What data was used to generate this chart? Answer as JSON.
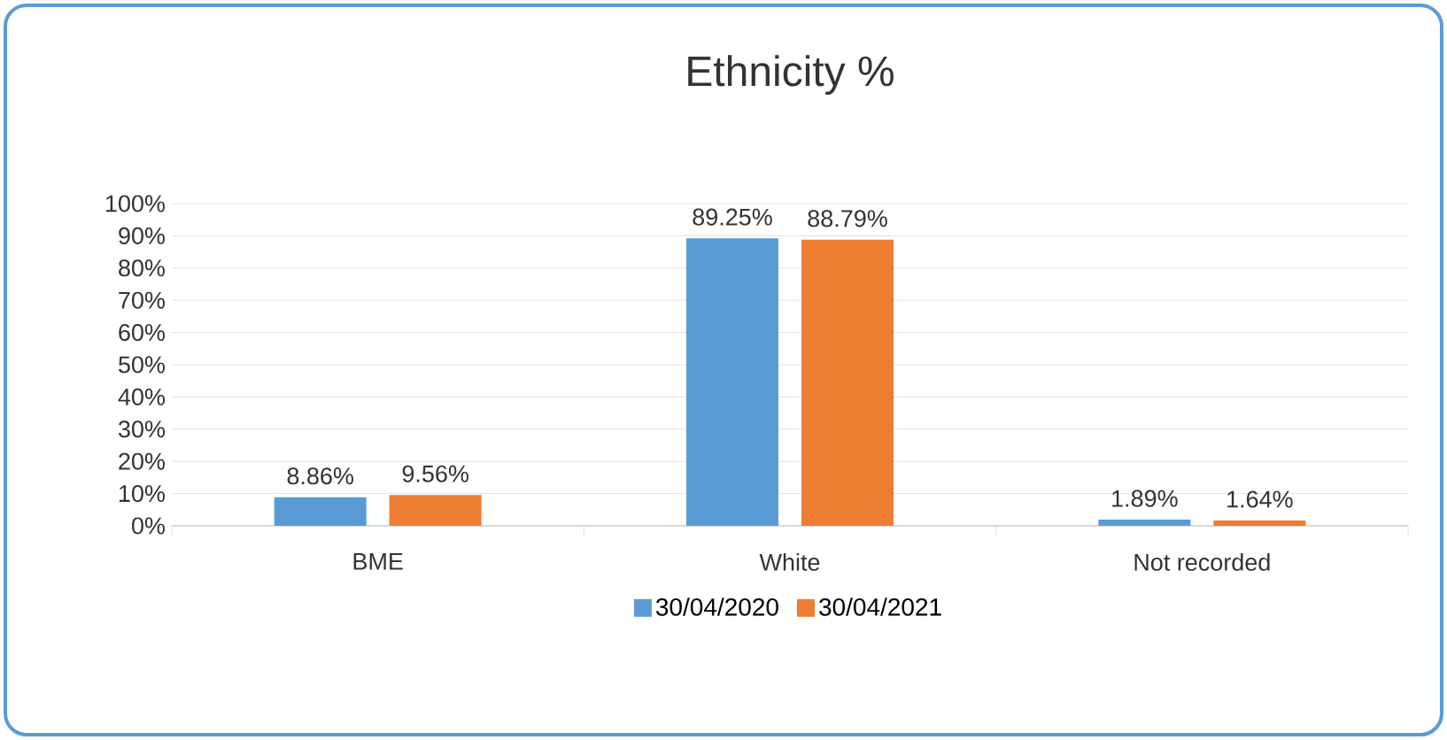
{
  "chart_data": {
    "type": "bar",
    "title": "Ethnicity %",
    "categories": [
      "BME",
      "White",
      "Not recorded"
    ],
    "series": [
      {
        "name": "30/04/2020",
        "color": "#5b9bd5",
        "values": [
          8.86,
          89.25,
          1.89
        ],
        "value_labels": [
          "8.86%",
          "89.25%",
          "1.89%"
        ]
      },
      {
        "name": "30/04/2021",
        "color": "#ed7d31",
        "values": [
          9.56,
          88.79,
          1.64
        ],
        "value_labels": [
          "9.56%",
          "88.79%",
          "1.64%"
        ]
      }
    ],
    "ylim": [
      0,
      100
    ],
    "yticks": [
      {
        "value": 0,
        "label": "0%"
      },
      {
        "value": 10,
        "label": "10%"
      },
      {
        "value": 20,
        "label": "20%"
      },
      {
        "value": 30,
        "label": "30%"
      },
      {
        "value": 40,
        "label": "40%"
      },
      {
        "value": 50,
        "label": "50%"
      },
      {
        "value": 60,
        "label": "60%"
      },
      {
        "value": 70,
        "label": "70%"
      },
      {
        "value": 80,
        "label": "80%"
      },
      {
        "value": 90,
        "label": "90%"
      },
      {
        "value": 100,
        "label": "100%"
      }
    ],
    "grid": "y",
    "legend": "bottom"
  }
}
